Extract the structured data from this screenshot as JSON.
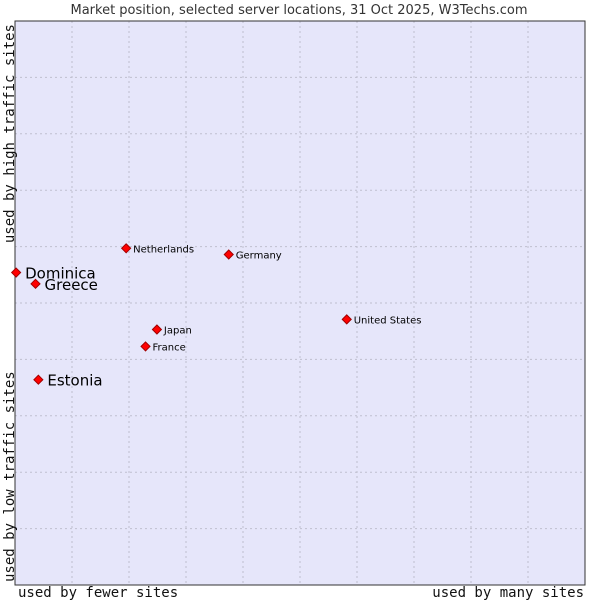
{
  "chart_data": {
    "type": "scatter",
    "title": "Market position, selected server locations, 31 Oct 2025, W3Techs.com",
    "xlabel_left": "used by fewer sites",
    "xlabel_right": "used by many sites",
    "ylabel_bottom": "used by low traffic sites",
    "ylabel_top": "used by high traffic sites",
    "grid": true,
    "x_gridlines": [
      10,
      20,
      30,
      40,
      50,
      60,
      70,
      80,
      90
    ],
    "y_gridlines": [
      10,
      20,
      30,
      40,
      50,
      60,
      70,
      80,
      90
    ],
    "xlim": [
      0,
      100
    ],
    "ylim": [
      0,
      100
    ],
    "colors": {
      "plot_background": "#e6e6fa",
      "grid": "#bfbfcf",
      "frame": "#333333",
      "marker_fill": "#ff0000",
      "marker_stroke": "#a00000"
    },
    "points": [
      {
        "label": "Dominica",
        "x": 0.2,
        "y": 55.4,
        "emphasis": true
      },
      {
        "label": "Greece",
        "x": 3.6,
        "y": 53.4,
        "emphasis": true
      },
      {
        "label": "Estonia",
        "x": 4.1,
        "y": 36.4,
        "emphasis": true
      },
      {
        "label": "Netherlands",
        "x": 19.5,
        "y": 59.7,
        "emphasis": false
      },
      {
        "label": "Germany",
        "x": 37.5,
        "y": 58.6,
        "emphasis": false
      },
      {
        "label": "Japan",
        "x": 24.9,
        "y": 45.3,
        "emphasis": false
      },
      {
        "label": "France",
        "x": 22.9,
        "y": 42.3,
        "emphasis": false
      },
      {
        "label": "United States",
        "x": 58.2,
        "y": 47.1,
        "emphasis": false
      }
    ]
  }
}
